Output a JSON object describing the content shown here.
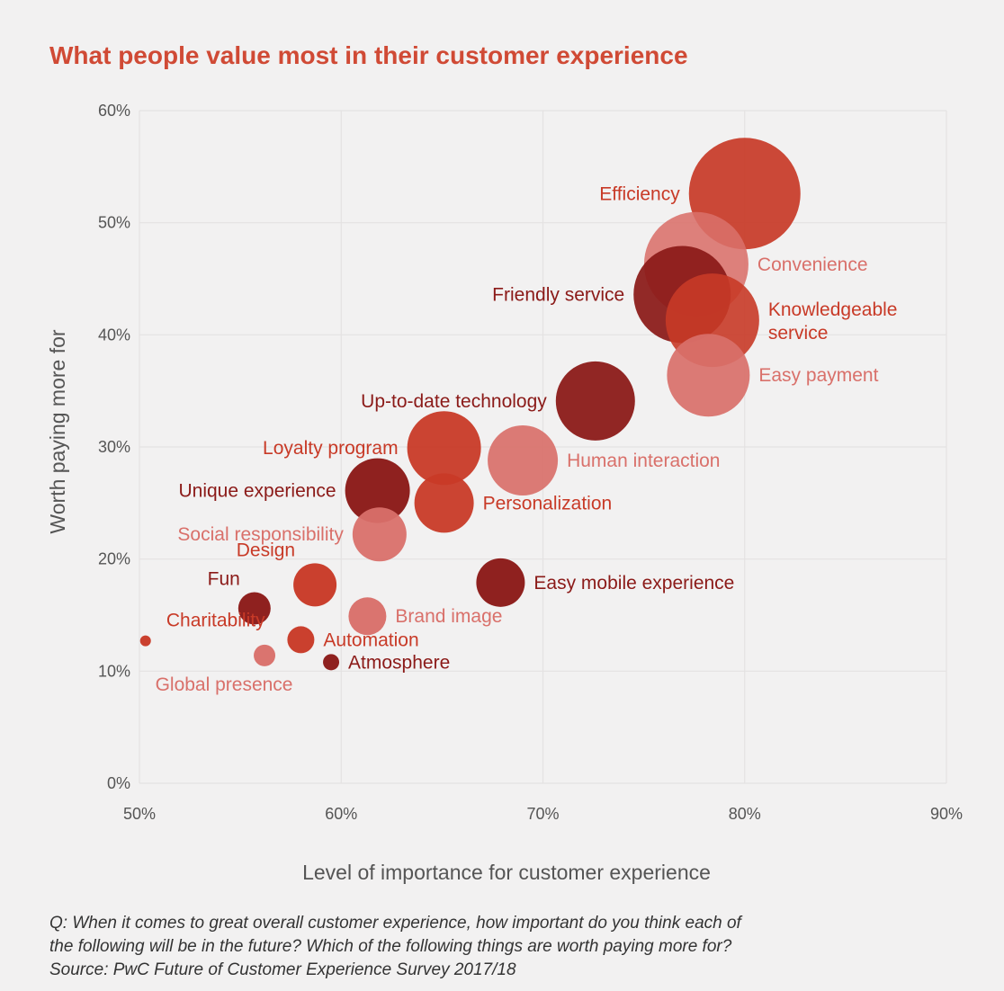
{
  "colors": {
    "accent": "#d04a35",
    "mid": "#c83a27",
    "light": "#d9706a",
    "dark": "#8b1a18",
    "grid": "#e4e2e2",
    "axisText": "#555555"
  },
  "chart_data": {
    "type": "scatter",
    "title": "What people value most in their customer experience",
    "xlabel": "Level of importance for customer experience",
    "ylabel": "Worth paying more for",
    "xlim": [
      50,
      90
    ],
    "ylim": [
      0,
      60
    ],
    "xticks": [
      "50%",
      "60%",
      "70%",
      "80%",
      "90%"
    ],
    "yticks": [
      "0%",
      "10%",
      "20%",
      "30%",
      "40%",
      "50%",
      "60%"
    ],
    "grid": true,
    "points": [
      {
        "label": "Efficiency",
        "x": 80.0,
        "y": 52.6,
        "r": 62,
        "color": "mid",
        "opacity": 0.92,
        "label_pos": "left",
        "label_color": "mid"
      },
      {
        "label": "Convenience",
        "x": 77.6,
        "y": 46.3,
        "r": 58,
        "color": "light",
        "opacity": 0.88,
        "label_pos": "right",
        "label_color": "light"
      },
      {
        "label": "Friendly service",
        "x": 76.9,
        "y": 43.6,
        "r": 54,
        "color": "dark",
        "opacity": 0.93,
        "label_pos": "left",
        "label_color": "dark"
      },
      {
        "label": "Knowledgeable service",
        "x": 78.4,
        "y": 41.3,
        "r": 52,
        "color": "mid",
        "opacity": 0.9,
        "label_pos": "right",
        "label_color": "mid",
        "label_lines": [
          "Knowledgeable",
          "service"
        ]
      },
      {
        "label": "Easy payment",
        "x": 78.2,
        "y": 36.4,
        "r": 46,
        "color": "light",
        "opacity": 0.92,
        "label_pos": "right",
        "label_color": "light"
      },
      {
        "label": "Up-to-date technology",
        "x": 72.6,
        "y": 34.1,
        "r": 44,
        "color": "dark",
        "opacity": 0.95,
        "label_pos": "left",
        "label_color": "dark"
      },
      {
        "label": "Human interaction",
        "x": 69.0,
        "y": 28.8,
        "r": 39,
        "color": "light",
        "opacity": 0.92,
        "label_pos": "right",
        "label_color": "light"
      },
      {
        "label": "Loyalty program",
        "x": 65.1,
        "y": 29.9,
        "r": 41,
        "color": "mid",
        "opacity": 0.95,
        "label_pos": "left",
        "label_color": "mid"
      },
      {
        "label": "Personalization",
        "x": 65.1,
        "y": 25.0,
        "r": 33,
        "color": "mid",
        "opacity": 0.95,
        "label_pos": "right",
        "label_color": "mid"
      },
      {
        "label": "Unique experience",
        "x": 61.8,
        "y": 26.1,
        "r": 36,
        "color": "dark",
        "opacity": 0.97,
        "label_pos": "left",
        "label_color": "dark"
      },
      {
        "label": "Social responsibility",
        "x": 61.9,
        "y": 22.2,
        "r": 30,
        "color": "light",
        "opacity": 0.95,
        "label_pos": "left",
        "label_color": "light"
      },
      {
        "label": "Easy mobile experience",
        "x": 67.9,
        "y": 17.9,
        "r": 27,
        "color": "dark",
        "opacity": 0.97,
        "label_pos": "right",
        "label_color": "dark"
      },
      {
        "label": "Design",
        "x": 58.7,
        "y": 17.7,
        "r": 24,
        "color": "mid",
        "opacity": 0.97,
        "label_pos": "upper-left",
        "label_color": "mid"
      },
      {
        "label": "Brand image",
        "x": 61.3,
        "y": 14.9,
        "r": 21,
        "color": "light",
        "opacity": 0.97,
        "label_pos": "right",
        "label_color": "light"
      },
      {
        "label": "Fun",
        "x": 55.7,
        "y": 15.6,
        "r": 18,
        "color": "dark",
        "opacity": 0.97,
        "label_pos": "upper-left",
        "label_color": "dark"
      },
      {
        "label": "Automation",
        "x": 58.0,
        "y": 12.8,
        "r": 15,
        "color": "mid",
        "opacity": 0.97,
        "label_pos": "right",
        "label_color": "mid"
      },
      {
        "label": "Global presence",
        "x": 56.2,
        "y": 11.4,
        "r": 12,
        "color": "light",
        "opacity": 0.97,
        "label_pos": "below",
        "label_color": "light"
      },
      {
        "label": "Atmosphere",
        "x": 59.5,
        "y": 10.8,
        "r": 9,
        "color": "dark",
        "opacity": 0.97,
        "label_pos": "right",
        "label_color": "dark"
      },
      {
        "label": "Charitability",
        "x": 50.3,
        "y": 12.7,
        "r": 6,
        "color": "mid",
        "opacity": 0.97,
        "label_pos": "upper-right",
        "label_color": "mid"
      }
    ]
  },
  "footnote": {
    "line1": "Q: When it comes to great overall customer experience, how important do you think each of",
    "line2": "the following will be in the future? Which of the following things are worth paying more for?",
    "line3": "Source: PwC Future of Customer Experience Survey 2017/18"
  }
}
